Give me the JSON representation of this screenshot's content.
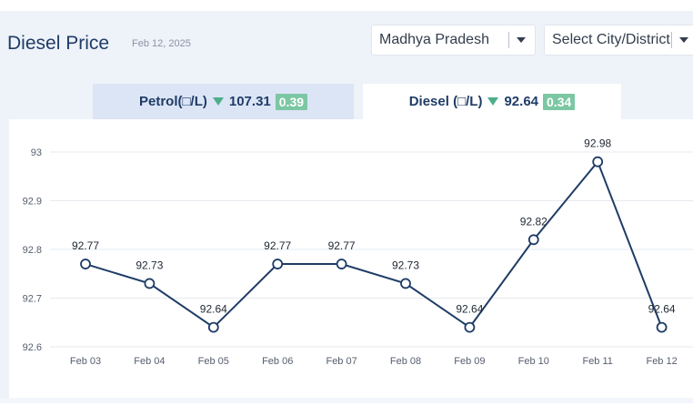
{
  "header": {
    "title": "Diesel Price",
    "date": "Feb 12, 2025"
  },
  "filters": {
    "state": "Madhya Pradesh",
    "city_placeholder": "Select City/District"
  },
  "tabs": [
    {
      "label": "Petrol(□/L)",
      "price": "107.31",
      "change": "0.39",
      "trend": "down"
    },
    {
      "label": "Diesel (□/L)",
      "price": "92.64",
      "change": "0.34",
      "trend": "down"
    }
  ],
  "colors": {
    "line": "#1f3c66",
    "trend_down": "#4caf8a",
    "badge": "#7cc7a3",
    "active_tab": "#ffffff",
    "inactive_tab": "#dbe5f6"
  },
  "chart_data": {
    "type": "line",
    "categories": [
      "Feb 03",
      "Feb 04",
      "Feb 05",
      "Feb 06",
      "Feb 07",
      "Feb 08",
      "Feb 09",
      "Feb 10",
      "Feb 11",
      "Feb 12"
    ],
    "values": [
      92.77,
      92.73,
      92.64,
      92.77,
      92.77,
      92.73,
      92.64,
      92.82,
      92.98,
      92.64
    ],
    "value_labels": [
      "92.77",
      "92.73",
      "92.64",
      "92.77",
      "92.77",
      "92.73",
      "92.64",
      "92.82",
      "92.98",
      "92.64"
    ],
    "y_ticks": [
      "92.6",
      "92.7",
      "92.8",
      "92.9",
      "93"
    ],
    "ylim": [
      92.6,
      93
    ],
    "grid": true,
    "legend": "none"
  }
}
